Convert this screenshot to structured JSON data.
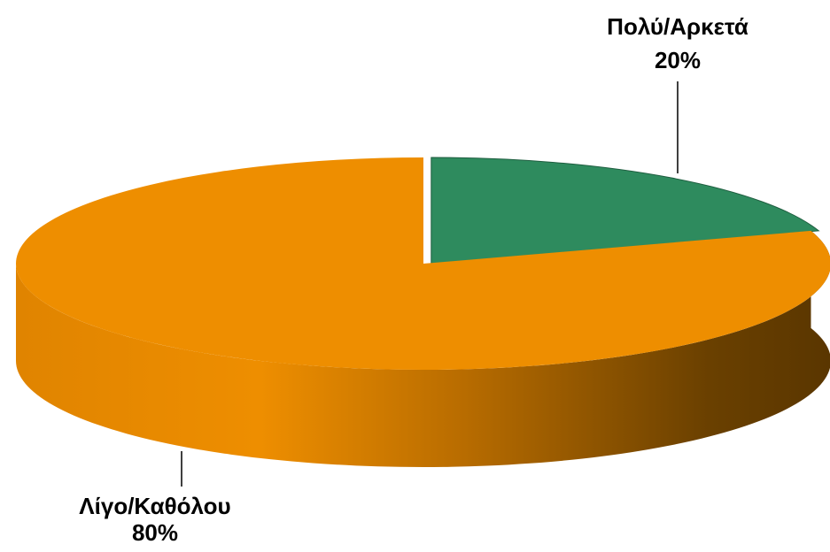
{
  "chart_data": {
    "type": "pie",
    "categories": [
      "Πολύ/Αρκετά",
      "Λίγο/Καθόλου"
    ],
    "values": [
      20,
      80
    ],
    "value_labels": [
      "20%",
      "80%"
    ],
    "colors": [
      "#2e8b5e",
      "#ee8e00"
    ]
  }
}
